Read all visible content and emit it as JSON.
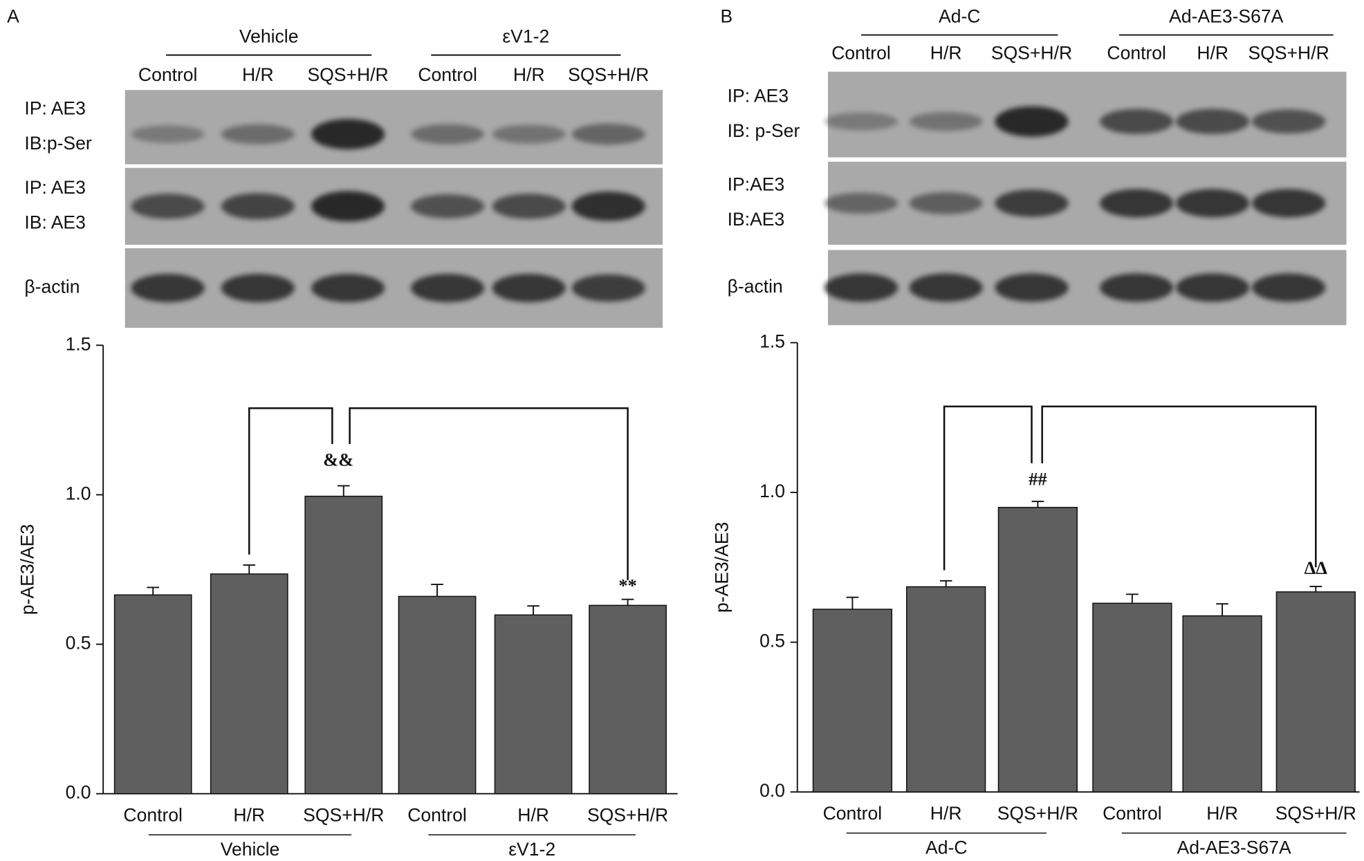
{
  "panels": [
    "A",
    "B"
  ],
  "blots": [
    {
      "rows": [
        [
          "IP: AE3",
          "IB:p-Ser"
        ],
        [
          "IP: AE3",
          "IB: AE3"
        ],
        [
          "β-actin"
        ]
      ]
    },
    {
      "rows": [
        [
          "IP: AE3",
          "IB: p-Ser"
        ],
        [
          "IP:AE3",
          "IB:AE3"
        ],
        [
          "β-actin"
        ]
      ]
    }
  ],
  "chart_data": [
    {
      "type": "bar",
      "categories": [
        "Control",
        "H/R",
        "SQS+H/R",
        "Control",
        "H/R",
        "SQS+H/R"
      ],
      "groups": [
        "Vehicle",
        "εV1-2"
      ],
      "values": [
        0.665,
        0.735,
        0.995,
        0.66,
        0.598,
        0.63
      ],
      "errors": [
        0.025,
        0.03,
        0.035,
        0.04,
        0.03,
        0.02
      ],
      "color": "#5f5f5f",
      "ylabel": "p-AE3/AE3",
      "annotations": [
        "&&",
        "**"
      ],
      "ylim": [
        0,
        1.5
      ],
      "yticks": [
        {
          "value": 0,
          "label": "0.0"
        },
        {
          "value": 0.5,
          "label": "0.5"
        },
        {
          "value": 1,
          "label": "1.0"
        },
        {
          "value": 1.5,
          "label": "1.5"
        }
      ]
    },
    {
      "type": "bar",
      "categories": [
        "Control",
        "H/R",
        "SQS+H/R",
        "Control",
        "H/R",
        "SQS+H/R"
      ],
      "groups": [
        "Ad-C",
        "Ad-AE3-S67A"
      ],
      "values": [
        0.61,
        0.685,
        0.95,
        0.63,
        0.588,
        0.668
      ],
      "errors": [
        0.04,
        0.02,
        0.02,
        0.03,
        0.04,
        0.018
      ],
      "color": "#5f5f5f",
      "ylabel": "p-AE3/AE3",
      "annotations": [
        "##",
        "ΔΔ"
      ],
      "ylim": [
        0,
        1.5
      ],
      "yticks": [
        {
          "value": 0,
          "label": "0.0"
        },
        {
          "value": 0.5,
          "label": "0.5"
        },
        {
          "value": 1,
          "label": "1.0"
        },
        {
          "value": 1.5,
          "label": "1.5"
        }
      ]
    }
  ]
}
